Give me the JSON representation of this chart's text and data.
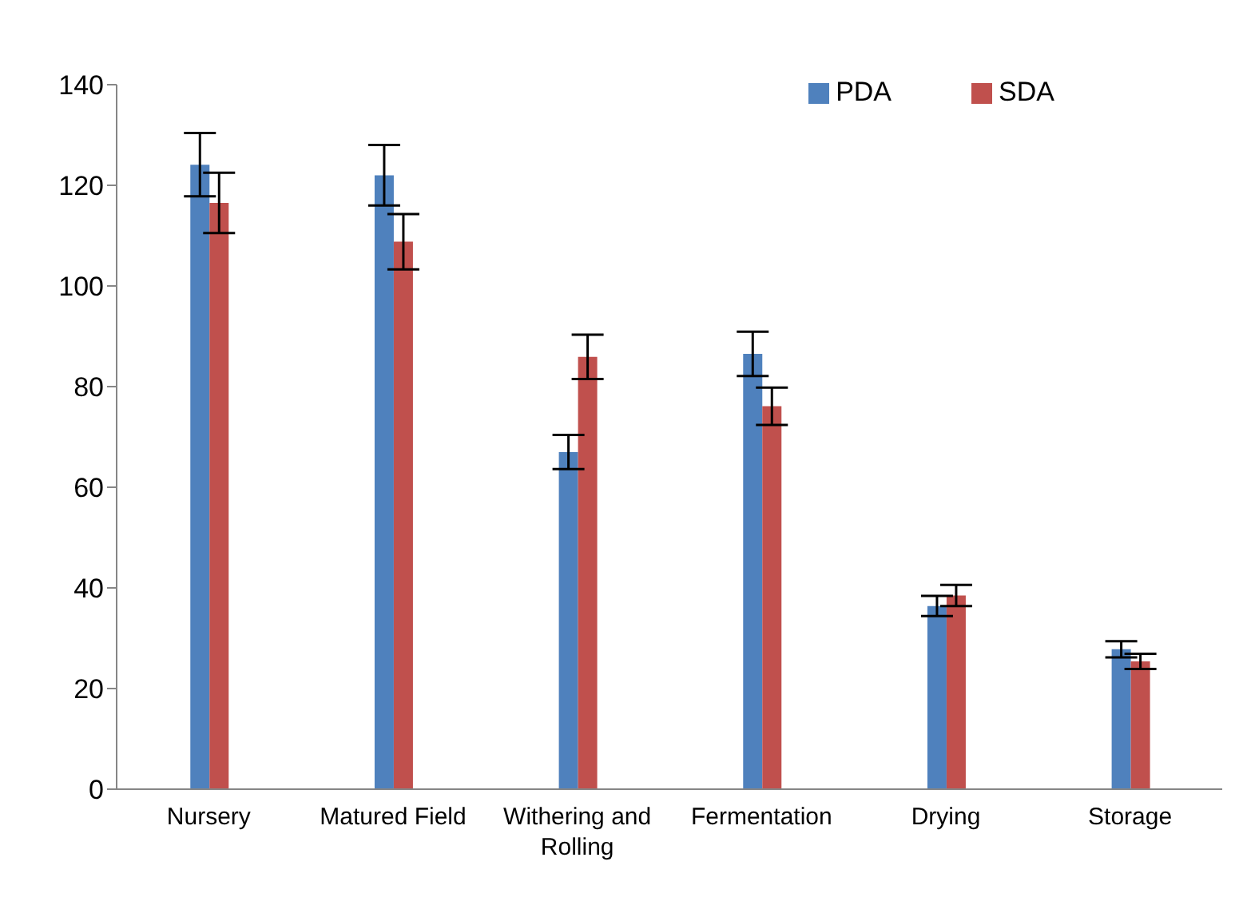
{
  "chart_data": {
    "type": "bar",
    "categories": [
      "Nursery",
      "Matured Field",
      "Withering and Rolling",
      "Fermentation",
      "Drying",
      "Storage"
    ],
    "series": [
      {
        "name": "PDA",
        "color": "#4f81bd",
        "values": [
          124.1,
          122,
          67,
          86.5,
          36.4,
          27.8
        ],
        "errors": [
          6.3,
          6,
          3.4,
          4.4,
          2,
          1.6
        ]
      },
      {
        "name": "SDA",
        "color": "#c0504d",
        "values": [
          116.5,
          108.8,
          85.9,
          76.1,
          38.5,
          25.4
        ],
        "errors": [
          6,
          5.5,
          4.4,
          3.7,
          2.1,
          1.5
        ]
      }
    ],
    "ylim": [
      0,
      140
    ],
    "yticks": [
      0,
      20,
      40,
      60,
      80,
      100,
      120,
      140
    ],
    "grid": false,
    "legend": "top right"
  }
}
